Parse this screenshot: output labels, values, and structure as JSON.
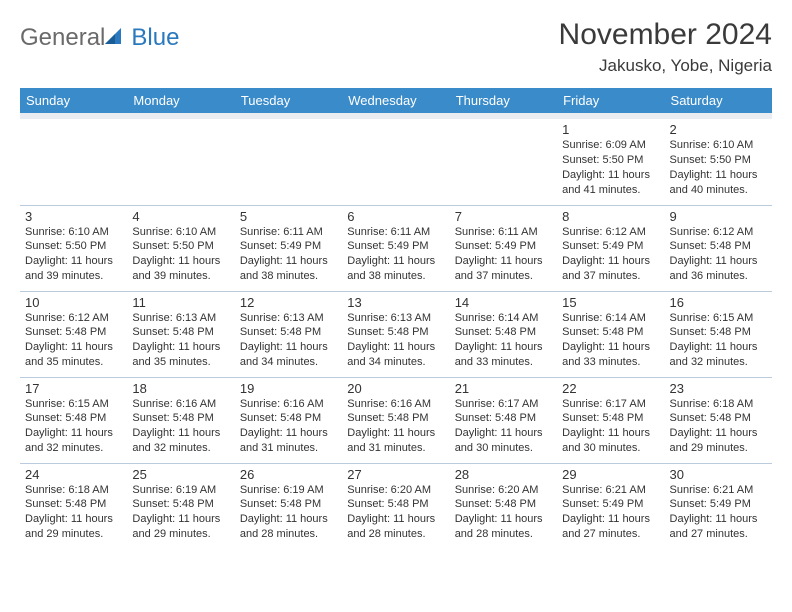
{
  "logo": {
    "part1": "General",
    "part2": "Blue"
  },
  "title": "November 2024",
  "location": "Jakusko, Yobe, Nigeria",
  "colors": {
    "header_bg": "#3a8bc9",
    "header_text": "#ffffff",
    "cell_border": "#b9cbdc",
    "spacer_bg": "#e9edf1",
    "logo_grey": "#6a6a6a",
    "logo_blue": "#2a78bd",
    "text": "#333333"
  },
  "weekdays": [
    "Sunday",
    "Monday",
    "Tuesday",
    "Wednesday",
    "Thursday",
    "Friday",
    "Saturday"
  ],
  "weeks": [
    [
      null,
      null,
      null,
      null,
      null,
      {
        "d": "1",
        "sr": "6:09 AM",
        "ss": "5:50 PM",
        "dl": "11 hours and 41 minutes."
      },
      {
        "d": "2",
        "sr": "6:10 AM",
        "ss": "5:50 PM",
        "dl": "11 hours and 40 minutes."
      }
    ],
    [
      {
        "d": "3",
        "sr": "6:10 AM",
        "ss": "5:50 PM",
        "dl": "11 hours and 39 minutes."
      },
      {
        "d": "4",
        "sr": "6:10 AM",
        "ss": "5:50 PM",
        "dl": "11 hours and 39 minutes."
      },
      {
        "d": "5",
        "sr": "6:11 AM",
        "ss": "5:49 PM",
        "dl": "11 hours and 38 minutes."
      },
      {
        "d": "6",
        "sr": "6:11 AM",
        "ss": "5:49 PM",
        "dl": "11 hours and 38 minutes."
      },
      {
        "d": "7",
        "sr": "6:11 AM",
        "ss": "5:49 PM",
        "dl": "11 hours and 37 minutes."
      },
      {
        "d": "8",
        "sr": "6:12 AM",
        "ss": "5:49 PM",
        "dl": "11 hours and 37 minutes."
      },
      {
        "d": "9",
        "sr": "6:12 AM",
        "ss": "5:48 PM",
        "dl": "11 hours and 36 minutes."
      }
    ],
    [
      {
        "d": "10",
        "sr": "6:12 AM",
        "ss": "5:48 PM",
        "dl": "11 hours and 35 minutes."
      },
      {
        "d": "11",
        "sr": "6:13 AM",
        "ss": "5:48 PM",
        "dl": "11 hours and 35 minutes."
      },
      {
        "d": "12",
        "sr": "6:13 AM",
        "ss": "5:48 PM",
        "dl": "11 hours and 34 minutes."
      },
      {
        "d": "13",
        "sr": "6:13 AM",
        "ss": "5:48 PM",
        "dl": "11 hours and 34 minutes."
      },
      {
        "d": "14",
        "sr": "6:14 AM",
        "ss": "5:48 PM",
        "dl": "11 hours and 33 minutes."
      },
      {
        "d": "15",
        "sr": "6:14 AM",
        "ss": "5:48 PM",
        "dl": "11 hours and 33 minutes."
      },
      {
        "d": "16",
        "sr": "6:15 AM",
        "ss": "5:48 PM",
        "dl": "11 hours and 32 minutes."
      }
    ],
    [
      {
        "d": "17",
        "sr": "6:15 AM",
        "ss": "5:48 PM",
        "dl": "11 hours and 32 minutes."
      },
      {
        "d": "18",
        "sr": "6:16 AM",
        "ss": "5:48 PM",
        "dl": "11 hours and 32 minutes."
      },
      {
        "d": "19",
        "sr": "6:16 AM",
        "ss": "5:48 PM",
        "dl": "11 hours and 31 minutes."
      },
      {
        "d": "20",
        "sr": "6:16 AM",
        "ss": "5:48 PM",
        "dl": "11 hours and 31 minutes."
      },
      {
        "d": "21",
        "sr": "6:17 AM",
        "ss": "5:48 PM",
        "dl": "11 hours and 30 minutes."
      },
      {
        "d": "22",
        "sr": "6:17 AM",
        "ss": "5:48 PM",
        "dl": "11 hours and 30 minutes."
      },
      {
        "d": "23",
        "sr": "6:18 AM",
        "ss": "5:48 PM",
        "dl": "11 hours and 29 minutes."
      }
    ],
    [
      {
        "d": "24",
        "sr": "6:18 AM",
        "ss": "5:48 PM",
        "dl": "11 hours and 29 minutes."
      },
      {
        "d": "25",
        "sr": "6:19 AM",
        "ss": "5:48 PM",
        "dl": "11 hours and 29 minutes."
      },
      {
        "d": "26",
        "sr": "6:19 AM",
        "ss": "5:48 PM",
        "dl": "11 hours and 28 minutes."
      },
      {
        "d": "27",
        "sr": "6:20 AM",
        "ss": "5:48 PM",
        "dl": "11 hours and 28 minutes."
      },
      {
        "d": "28",
        "sr": "6:20 AM",
        "ss": "5:48 PM",
        "dl": "11 hours and 28 minutes."
      },
      {
        "d": "29",
        "sr": "6:21 AM",
        "ss": "5:49 PM",
        "dl": "11 hours and 27 minutes."
      },
      {
        "d": "30",
        "sr": "6:21 AM",
        "ss": "5:49 PM",
        "dl": "11 hours and 27 minutes."
      }
    ]
  ],
  "labels": {
    "sunrise": "Sunrise:",
    "sunset": "Sunset:",
    "daylight": "Daylight:"
  }
}
